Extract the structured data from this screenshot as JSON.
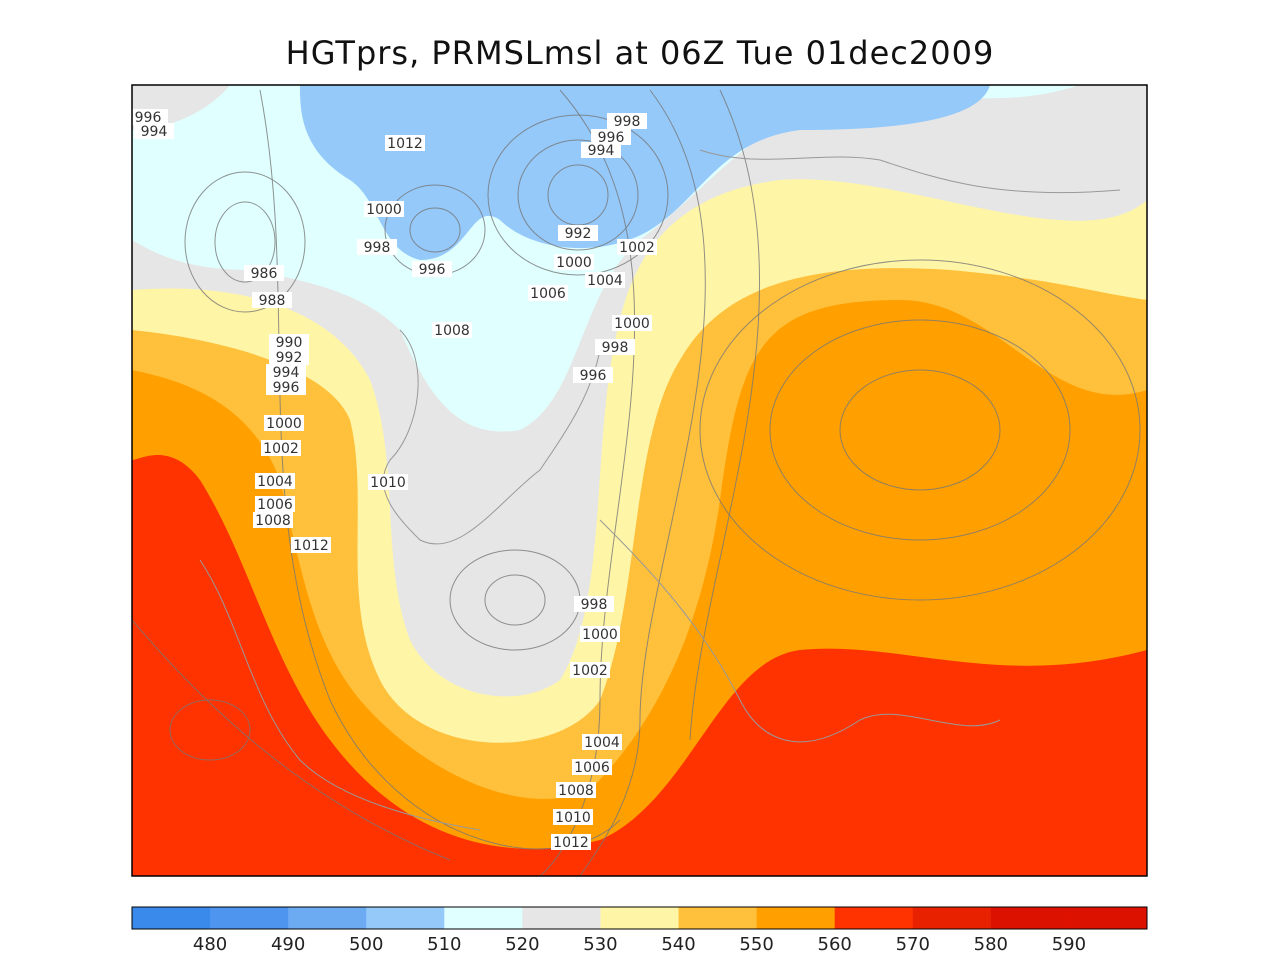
{
  "title": "HGTprs, PRMSLmsl at 06Z Tue 01dec2009",
  "isobar_labels": [
    986,
    988,
    990,
    992,
    994,
    996,
    1000,
    1002,
    1004,
    1006,
    1008,
    1012,
    1010,
    1008,
    1012,
    1000,
    998,
    996,
    1006,
    1000,
    1004,
    992,
    1002,
    996,
    994,
    998,
    1000,
    998,
    996,
    998,
    1000,
    1002,
    1004,
    1006,
    1008,
    1010,
    1012,
    994,
    996
  ],
  "colorbar": {
    "labels": [
      480,
      490,
      500,
      510,
      520,
      530,
      540,
      550,
      560,
      570,
      580,
      590
    ],
    "colors": [
      "#3a8aec",
      "#4d95ee",
      "#6caaf2",
      "#94c9fa",
      "#e0ffff",
      "#e6e6e6",
      "#fff5a6",
      "#ffc03c",
      "#ffa000",
      "#ff3300",
      "#e82200",
      "#dd1100",
      "#dd1100"
    ]
  }
}
